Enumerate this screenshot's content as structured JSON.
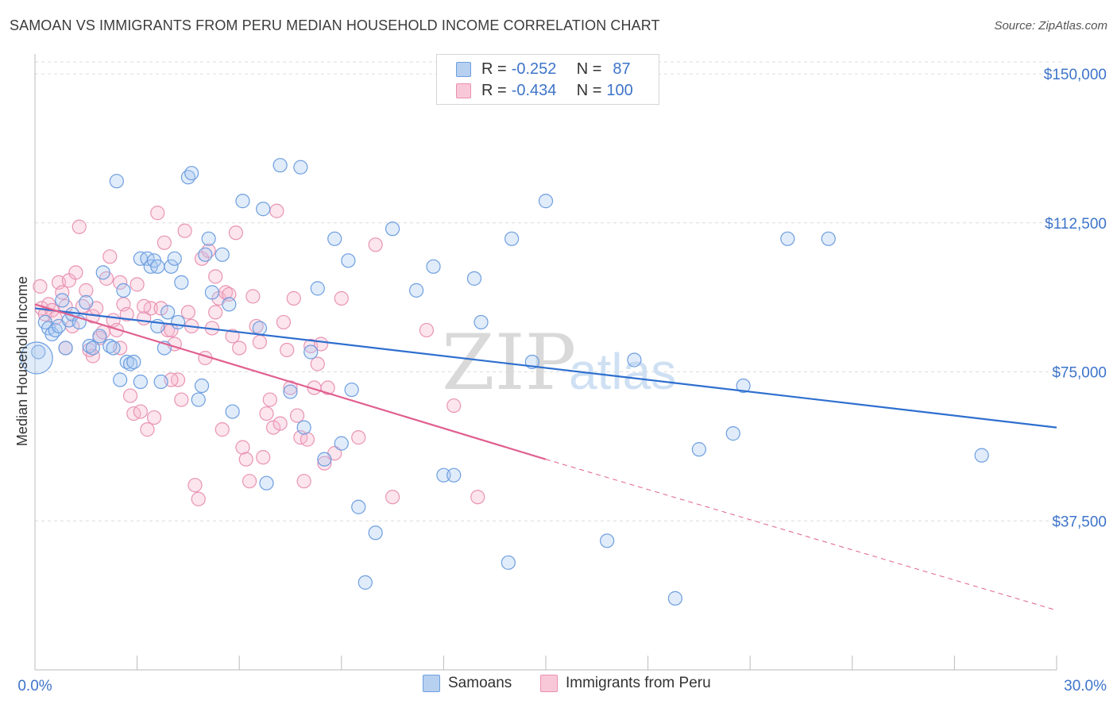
{
  "header": {
    "title": "SAMOAN VS IMMIGRANTS FROM PERU MEDIAN HOUSEHOLD INCOME CORRELATION CHART",
    "source": "Source: ZipAtlas.com"
  },
  "watermark": {
    "zip": "ZIP",
    "atlas": "atlas"
  },
  "legend_top": {
    "rows": [
      {
        "r_label": "R = ",
        "r_value": "-0.252",
        "n_label": "N = ",
        "n_value": "87",
        "color": "#6d9ee0"
      },
      {
        "r_label": "R = ",
        "r_value": "-0.434",
        "n_label": "N = ",
        "n_value": "100",
        "color": "#ea8fb0"
      }
    ]
  },
  "legend_bottom": {
    "items": [
      "Samoans",
      "Immigrants from Peru"
    ]
  },
  "chart_data": {
    "type": "scatter",
    "title": "SAMOAN VS IMMIGRANTS FROM PERU MEDIAN HOUSEHOLD INCOME CORRELATION CHART",
    "ylabel": "Median Household Income",
    "xlim": [
      0,
      30
    ],
    "ylim": [
      0,
      153000
    ],
    "x_tick_labels": [
      "0.0%",
      "30.0%"
    ],
    "y_tick_values": [
      37500,
      75000,
      112500,
      150000
    ],
    "y_tick_labels": [
      "$37,500",
      "$75,000",
      "$112,500",
      "$150,000"
    ],
    "grid": true,
    "colors": {
      "samoans": "#4f86d6",
      "peru": "#e57ca3",
      "samoans_line": "#2e6fcf",
      "peru_line": "#e0608f"
    },
    "series": [
      {
        "name": "Samoans",
        "R": -0.252,
        "N": 87,
        "trend": {
          "x": [
            0,
            30
          ],
          "y": [
            91000,
            61000
          ]
        },
        "points": [
          [
            0.1,
            80000
          ],
          [
            0.3,
            87500
          ],
          [
            0.4,
            86000
          ],
          [
            0.5,
            84500
          ],
          [
            0.6,
            85500
          ],
          [
            0.7,
            86500
          ],
          [
            0.8,
            93000
          ],
          [
            0.9,
            81000
          ],
          [
            1.0,
            88000
          ],
          [
            1.1,
            89500
          ],
          [
            1.3,
            87500
          ],
          [
            1.5,
            92500
          ],
          [
            1.6,
            81500
          ],
          [
            1.7,
            81000
          ],
          [
            1.9,
            84000
          ],
          [
            2.0,
            100000
          ],
          [
            2.2,
            81500
          ],
          [
            2.3,
            81000
          ],
          [
            2.4,
            123000
          ],
          [
            2.5,
            73000
          ],
          [
            2.6,
            95500
          ],
          [
            2.7,
            77500
          ],
          [
            2.8,
            77000
          ],
          [
            2.9,
            77500
          ],
          [
            3.1,
            103500
          ],
          [
            3.1,
            72500
          ],
          [
            3.3,
            103500
          ],
          [
            3.4,
            101500
          ],
          [
            3.5,
            103000
          ],
          [
            3.6,
            101500
          ],
          [
            3.7,
            72500
          ],
          [
            3.8,
            81000
          ],
          [
            3.9,
            90000
          ],
          [
            4.0,
            101500
          ],
          [
            4.1,
            103500
          ],
          [
            4.2,
            87500
          ],
          [
            4.3,
            97500
          ],
          [
            4.5,
            124000
          ],
          [
            4.6,
            125000
          ],
          [
            4.8,
            68000
          ],
          [
            4.9,
            71500
          ],
          [
            5.0,
            104500
          ],
          [
            5.1,
            108500
          ],
          [
            5.2,
            95000
          ],
          [
            5.5,
            104500
          ],
          [
            5.7,
            92000
          ],
          [
            5.8,
            65000
          ],
          [
            6.1,
            118000
          ],
          [
            6.6,
            86000
          ],
          [
            6.7,
            116000
          ],
          [
            6.8,
            47000
          ],
          [
            7.2,
            127000
          ],
          [
            7.5,
            70000
          ],
          [
            7.8,
            126500
          ],
          [
            7.9,
            61000
          ],
          [
            8.1,
            80000
          ],
          [
            8.3,
            96000
          ],
          [
            8.5,
            53000
          ],
          [
            8.8,
            108500
          ],
          [
            9.0,
            57000
          ],
          [
            9.2,
            103000
          ],
          [
            9.3,
            70500
          ],
          [
            9.5,
            41000
          ],
          [
            9.7,
            22000
          ],
          [
            10.0,
            34500
          ],
          [
            10.5,
            111000
          ],
          [
            11.2,
            95500
          ],
          [
            11.7,
            101500
          ],
          [
            12.0,
            49000
          ],
          [
            12.3,
            49000
          ],
          [
            12.9,
            98500
          ],
          [
            13.1,
            87500
          ],
          [
            13.9,
            27000
          ],
          [
            14.0,
            108500
          ],
          [
            14.6,
            77500
          ],
          [
            15.0,
            118000
          ],
          [
            16.8,
            32500
          ],
          [
            17.6,
            78000
          ],
          [
            18.8,
            18000
          ],
          [
            19.5,
            55500
          ],
          [
            20.5,
            59500
          ],
          [
            20.8,
            71500
          ],
          [
            22.1,
            108500
          ],
          [
            23.3,
            108500
          ],
          [
            27.8,
            54000
          ],
          [
            0.05,
            78500
          ],
          [
            3.6,
            86500
          ]
        ]
      },
      {
        "name": "Immigrants from Peru",
        "R": -0.434,
        "N": 100,
        "trend": {
          "x": [
            0,
            15
          ],
          "y": [
            92000,
            53000
          ]
        },
        "trend_dashed": {
          "x": [
            15,
            30
          ],
          "y": [
            53000,
            15000
          ]
        },
        "points": [
          [
            0.2,
            91000
          ],
          [
            0.3,
            89500
          ],
          [
            0.4,
            92000
          ],
          [
            0.5,
            90500
          ],
          [
            0.6,
            88500
          ],
          [
            0.7,
            97500
          ],
          [
            0.8,
            95000
          ],
          [
            0.9,
            91500
          ],
          [
            1.0,
            98000
          ],
          [
            1.1,
            86500
          ],
          [
            1.2,
            100000
          ],
          [
            1.3,
            111500
          ],
          [
            1.4,
            91500
          ],
          [
            1.5,
            95500
          ],
          [
            1.6,
            80500
          ],
          [
            1.7,
            89000
          ],
          [
            1.8,
            91000
          ],
          [
            1.9,
            83500
          ],
          [
            2.0,
            85000
          ],
          [
            2.1,
            98500
          ],
          [
            2.2,
            104000
          ],
          [
            2.3,
            88000
          ],
          [
            2.4,
            85500
          ],
          [
            2.5,
            81000
          ],
          [
            2.6,
            92000
          ],
          [
            2.7,
            89500
          ],
          [
            2.8,
            69000
          ],
          [
            2.9,
            64500
          ],
          [
            3.0,
            97000
          ],
          [
            3.1,
            65000
          ],
          [
            3.2,
            88500
          ],
          [
            3.3,
            60500
          ],
          [
            3.4,
            91000
          ],
          [
            3.5,
            63500
          ],
          [
            3.6,
            115000
          ],
          [
            3.7,
            91000
          ],
          [
            3.8,
            107500
          ],
          [
            3.9,
            85500
          ],
          [
            4.0,
            85500
          ],
          [
            4.1,
            82000
          ],
          [
            4.2,
            73000
          ],
          [
            4.3,
            68000
          ],
          [
            4.4,
            110500
          ],
          [
            4.5,
            90000
          ],
          [
            4.6,
            86500
          ],
          [
            4.7,
            46500
          ],
          [
            4.8,
            43000
          ],
          [
            4.9,
            103500
          ],
          [
            5.0,
            78500
          ],
          [
            5.1,
            105500
          ],
          [
            5.2,
            86000
          ],
          [
            5.3,
            99000
          ],
          [
            5.4,
            93500
          ],
          [
            5.5,
            60500
          ],
          [
            5.6,
            95000
          ],
          [
            5.7,
            94500
          ],
          [
            5.8,
            84000
          ],
          [
            5.9,
            110000
          ],
          [
            6.0,
            81000
          ],
          [
            6.1,
            56000
          ],
          [
            6.2,
            53000
          ],
          [
            6.3,
            47500
          ],
          [
            6.4,
            94000
          ],
          [
            6.5,
            86500
          ],
          [
            6.6,
            82500
          ],
          [
            6.7,
            53500
          ],
          [
            6.8,
            64500
          ],
          [
            6.9,
            68000
          ],
          [
            7.0,
            61000
          ],
          [
            7.1,
            115500
          ],
          [
            7.2,
            62000
          ],
          [
            7.3,
            87500
          ],
          [
            7.4,
            80500
          ],
          [
            7.5,
            71000
          ],
          [
            7.6,
            93500
          ],
          [
            7.7,
            64000
          ],
          [
            7.8,
            58500
          ],
          [
            7.9,
            47500
          ],
          [
            8.0,
            58000
          ],
          [
            8.1,
            81500
          ],
          [
            8.2,
            71000
          ],
          [
            8.3,
            77000
          ],
          [
            8.4,
            82000
          ],
          [
            8.5,
            52000
          ],
          [
            8.6,
            71000
          ],
          [
            8.8,
            54500
          ],
          [
            9.0,
            93500
          ],
          [
            9.5,
            58500
          ],
          [
            10.0,
            107000
          ],
          [
            10.5,
            43500
          ],
          [
            11.5,
            85500
          ],
          [
            12.3,
            66500
          ],
          [
            13.0,
            43500
          ],
          [
            0.15,
            96500
          ],
          [
            0.9,
            81000
          ],
          [
            1.7,
            79000
          ],
          [
            2.5,
            97500
          ],
          [
            3.2,
            91500
          ],
          [
            4.0,
            73000
          ],
          [
            5.3,
            90000
          ]
        ]
      }
    ]
  }
}
